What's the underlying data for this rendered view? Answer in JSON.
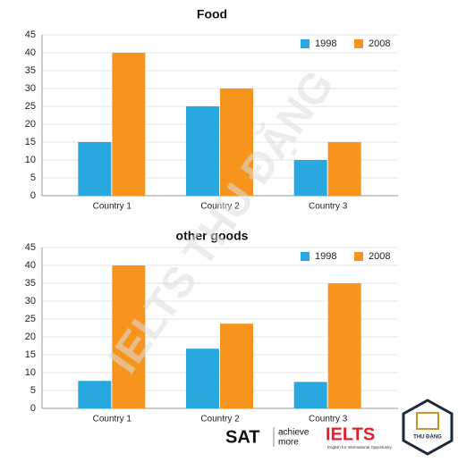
{
  "chart_data": [
    {
      "type": "bar",
      "title": "Food",
      "categories": [
        "Country 1",
        "Country 2",
        "Country 3"
      ],
      "series": [
        {
          "name": "1998",
          "color": "#29a8e0",
          "values": [
            15,
            25,
            10
          ]
        },
        {
          "name": "2008",
          "color": "#f7941d",
          "values": [
            40,
            30,
            15
          ]
        }
      ],
      "ylim": [
        0,
        45
      ],
      "yticks": [
        0,
        5,
        10,
        15,
        20,
        25,
        30,
        35,
        40,
        45
      ],
      "grid": true,
      "legend": "top-right"
    },
    {
      "type": "bar",
      "title": "other goods",
      "categories": [
        "Country 1",
        "Country 2",
        "Country 3"
      ],
      "series": [
        {
          "name": "1998",
          "color": "#29a8e0",
          "values": [
            7.7,
            16.7,
            7.4
          ]
        },
        {
          "name": "2008",
          "color": "#f7941d",
          "values": [
            40,
            23.7,
            35
          ]
        }
      ],
      "ylim": [
        0,
        45
      ],
      "yticks": [
        0,
        5,
        10,
        15,
        20,
        25,
        30,
        35,
        40,
        45
      ],
      "grid": true,
      "legend": "top-right"
    }
  ],
  "watermark": "IELTS THU ĐẶNG",
  "branding": {
    "sat": "SAT",
    "sat_tagline_1": "achieve",
    "sat_tagline_2": "more",
    "ielts": "IELTS",
    "ielts_tagline": "English for International Opportunity",
    "badge": "THU ĐẶNG"
  }
}
